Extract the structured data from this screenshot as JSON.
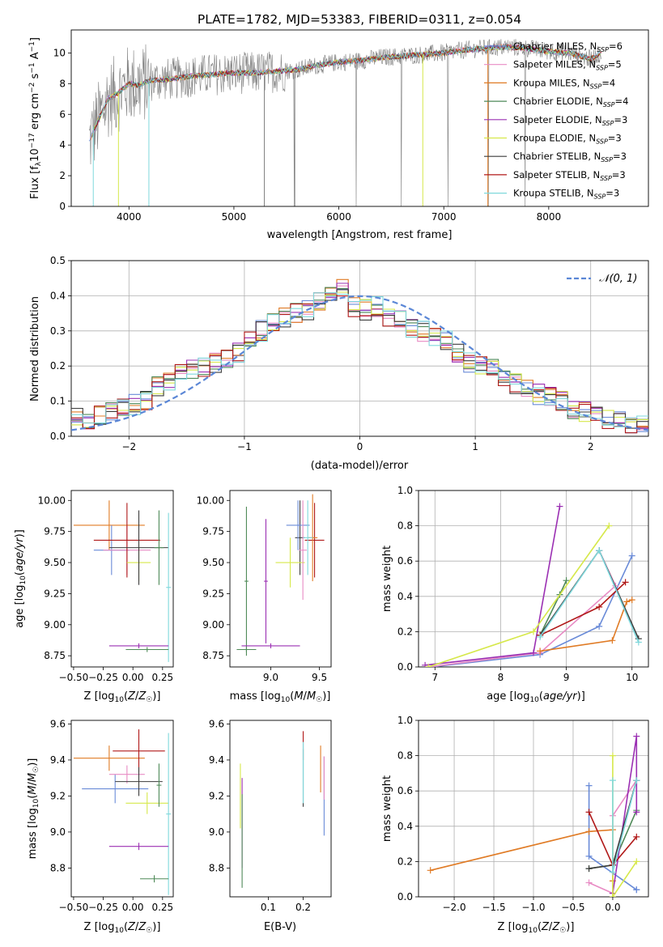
{
  "figure": {
    "title": "PLATE=1782, MJD=53383, FIBERID=0311, z=0.054"
  },
  "legend": {
    "models": [
      {
        "label": "Chabrier MILES, N",
        "sub": "SSP",
        "count": "=6",
        "color": "#6a8bd8"
      },
      {
        "label": "Salpeter MILES, N",
        "sub": "SSP",
        "count": "=5",
        "color": "#e88bc4"
      },
      {
        "label": "Kroupa MILES, N",
        "sub": "SSP",
        "count": "=4",
        "color": "#e07b25"
      },
      {
        "label": "Chabrier ELODIE, N",
        "sub": "SSP",
        "count": "=4",
        "color": "#4f8a58"
      },
      {
        "label": "Salpeter ELODIE, N",
        "sub": "SSP",
        "count": "=3",
        "color": "#9b30b3"
      },
      {
        "label": "Kroupa ELODIE, N",
        "sub": "SSP",
        "count": "=3",
        "color": "#d6e84a"
      },
      {
        "label": "Chabrier STELIB, N",
        "sub": "SSP",
        "count": "=3",
        "color": "#3c3c3c"
      },
      {
        "label": "Salpeter STELIB, N",
        "sub": "SSP",
        "count": "=3",
        "color": "#b01818"
      },
      {
        "label": "Kroupa STELIB, N",
        "sub": "SSP",
        "count": "=3",
        "color": "#7fd8dc"
      }
    ],
    "normal_label": "𝒩(0, 1)",
    "normal_color": "#5b87d6",
    "data_color": "#808080"
  },
  "chart_data": [
    {
      "type": "line",
      "title": "PLATE=1782, MJD=53383, FIBERID=0311, z=0.054",
      "xlabel": "wavelength [Angstrom, rest frame]",
      "ylabel": "Flux [f_λ 10^-17 erg cm^-2 s^-1 A^-1]",
      "xlim": [
        3450,
        8950
      ],
      "ylim": [
        0,
        11.5
      ],
      "xticks": [
        4000,
        5000,
        6000,
        7000,
        8000
      ],
      "yticks": [
        0,
        2,
        4,
        6,
        8,
        10
      ],
      "continuum": {
        "x": [
          3620,
          3700,
          3800,
          3900,
          4000,
          4100,
          4200,
          4400,
          4600,
          4800,
          5000,
          5200,
          5400,
          5600,
          5800,
          6000,
          6200,
          6400,
          6600,
          6800,
          7000,
          7200,
          7400,
          7600,
          7800,
          8000,
          8200,
          8400,
          8500
        ],
        "y": [
          4.2,
          5.5,
          7.0,
          7.4,
          8.0,
          7.9,
          8.2,
          8.3,
          8.5,
          8.6,
          8.7,
          8.7,
          8.8,
          8.9,
          9.2,
          9.4,
          9.5,
          9.7,
          9.8,
          9.9,
          10.0,
          10.2,
          10.3,
          10.4,
          10.3,
          10.1,
          10.0,
          9.6,
          10.0
        ]
      }
    },
    {
      "type": "histogram",
      "xlabel": "(data-model)/error",
      "ylabel": "Normed distribution",
      "xlim": [
        -2.5,
        2.5
      ],
      "ylim": [
        0,
        0.5
      ],
      "xticks": [
        -2,
        -1,
        0,
        1,
        2
      ],
      "yticks": [
        0.0,
        0.1,
        0.2,
        0.3,
        0.4,
        0.5
      ],
      "bin_edges": [
        -2.5,
        -2.4,
        -2.3,
        -2.2,
        -2.1,
        -2.0,
        -1.9,
        -1.8,
        -1.7,
        -1.6,
        -1.5,
        -1.4,
        -1.3,
        -1.2,
        -1.1,
        -1.0,
        -0.9,
        -0.8,
        -0.7,
        -0.6,
        -0.5,
        -0.4,
        -0.3,
        -0.2,
        -0.1,
        0.0,
        0.1,
        0.2,
        0.3,
        0.4,
        0.5,
        0.6,
        0.7,
        0.8,
        0.9,
        1.0,
        1.1,
        1.2,
        1.3,
        1.4,
        1.5,
        1.6,
        1.7,
        1.8,
        1.9,
        2.0,
        2.1,
        2.2,
        2.3,
        2.4,
        2.5
      ],
      "base_density": [
        0.05,
        0.05,
        0.06,
        0.07,
        0.08,
        0.09,
        0.1,
        0.14,
        0.16,
        0.18,
        0.19,
        0.2,
        0.21,
        0.22,
        0.24,
        0.27,
        0.3,
        0.32,
        0.34,
        0.35,
        0.36,
        0.38,
        0.4,
        0.42,
        0.37,
        0.36,
        0.37,
        0.34,
        0.33,
        0.31,
        0.3,
        0.28,
        0.27,
        0.24,
        0.21,
        0.2,
        0.19,
        0.17,
        0.15,
        0.14,
        0.12,
        0.11,
        0.1,
        0.08,
        0.07,
        0.06,
        0.05,
        0.04,
        0.03,
        0.03
      ],
      "normal_curve": {
        "name": "𝒩(0, 1)",
        "mu": 0,
        "sigma": 1
      }
    },
    {
      "type": "scatter",
      "xlabel": "Z [log₁₀(Z/Z☉)]",
      "ylabel": "age [log₁₀(age/yr)]",
      "xlim": [
        -0.52,
        0.34
      ],
      "ylim": [
        8.66,
        10.08
      ],
      "xticks": [
        -0.5,
        -0.25,
        0.0,
        0.25
      ],
      "yticks": [
        8.75,
        9.0,
        9.25,
        9.5,
        9.75,
        10.0
      ],
      "points": [
        {
          "x": -0.2,
          "y": 9.8,
          "xerr": 0.3,
          "yerr": 0.2,
          "color": "#e07b25"
        },
        {
          "x": -0.18,
          "y": 9.6,
          "xerr": 0.15,
          "yerr": 0.2,
          "color": "#6a8bd8"
        },
        {
          "x": -0.05,
          "y": 9.6,
          "xerr": 0.2,
          "yerr": 0.2,
          "color": "#e88bc4"
        },
        {
          "x": -0.05,
          "y": 9.68,
          "xerr": 0.28,
          "yerr": 0.3,
          "color": "#b01818"
        },
        {
          "x": 0.05,
          "y": 9.5,
          "xerr": 0.1,
          "yerr": 0.15,
          "color": "#d6e84a"
        },
        {
          "x": 0.05,
          "y": 9.62,
          "xerr": 0.25,
          "yerr": 0.3,
          "color": "#3c3c3c"
        },
        {
          "x": 0.22,
          "y": 9.62,
          "xerr": 0.04,
          "yerr": 0.3,
          "color": "#4f8a58"
        },
        {
          "x": 0.3,
          "y": 9.3,
          "xerr": 0.02,
          "yerr": 0.6,
          "color": "#7fd8dc"
        },
        {
          "x": 0.05,
          "y": 8.83,
          "xerr": 0.25,
          "yerr": 0.02,
          "color": "#9b30b3"
        },
        {
          "x": 0.12,
          "y": 8.8,
          "xerr": 0.18,
          "yerr": 0.02,
          "color": "#4f8a58"
        }
      ]
    },
    {
      "type": "scatter",
      "xlabel": "mass [log₁₀(M/M☉)]",
      "ylabel": "",
      "xlim": [
        8.58,
        9.62
      ],
      "ylim": [
        8.66,
        10.08
      ],
      "xticks": [
        9.0,
        9.5
      ],
      "yticks": [
        8.75,
        9.0,
        9.25,
        9.5,
        9.75,
        10.0
      ],
      "points": [
        {
          "x": 8.75,
          "y": 9.35,
          "xerr": 0.02,
          "yerr": 0.6,
          "color": "#4f8a58"
        },
        {
          "x": 8.95,
          "y": 9.35,
          "xerr": 0.02,
          "yerr": 0.5,
          "color": "#9b30b3"
        },
        {
          "x": 9.3,
          "y": 9.7,
          "xerr": 0.05,
          "yerr": 0.3,
          "color": "#3c3c3c"
        },
        {
          "x": 9.2,
          "y": 9.5,
          "xerr": 0.15,
          "yerr": 0.2,
          "color": "#d6e84a"
        },
        {
          "x": 9.28,
          "y": 9.8,
          "xerr": 0.12,
          "yerr": 0.2,
          "color": "#6a8bd8"
        },
        {
          "x": 9.45,
          "y": 9.68,
          "xerr": 0.1,
          "yerr": 0.3,
          "color": "#b01818"
        },
        {
          "x": 9.43,
          "y": 9.7,
          "xerr": 0.05,
          "yerr": 0.35,
          "color": "#e07b25"
        },
        {
          "x": 9.38,
          "y": 9.7,
          "xerr": 0.05,
          "yerr": 0.3,
          "color": "#7fd8dc"
        },
        {
          "x": 9.33,
          "y": 9.6,
          "xerr": 0.04,
          "yerr": 0.4,
          "color": "#e88bc4"
        },
        {
          "x": 9.0,
          "y": 8.83,
          "xerr": 0.3,
          "yerr": 0.02,
          "color": "#9b30b3"
        },
        {
          "x": 8.75,
          "y": 8.8,
          "xerr": 0.1,
          "yerr": 0.02,
          "color": "#4f8a58"
        }
      ]
    },
    {
      "type": "line",
      "xlabel": "age [log₁₀(age/yr)]",
      "ylabel": "mass weight",
      "xlim": [
        6.75,
        10.25
      ],
      "ylim": [
        0,
        1.0
      ],
      "xticks": [
        7,
        8,
        9,
        10
      ],
      "yticks": [
        0.0,
        0.2,
        0.4,
        0.6,
        0.8,
        1.0
      ],
      "series": [
        {
          "model": 0,
          "color": "#6a8bd8",
          "x": [
            6.95,
            8.6,
            9.5,
            10.0
          ],
          "y": [
            0.0,
            0.07,
            0.23,
            0.63
          ]
        },
        {
          "model": 1,
          "color": "#e88bc4",
          "x": [
            6.9,
            8.6,
            9.75,
            9.5
          ],
          "y": [
            0.0,
            0.08,
            0.46,
            0.66
          ]
        },
        {
          "model": 2,
          "color": "#e07b25",
          "x": [
            8.6,
            9.7,
            9.92,
            10.0
          ],
          "y": [
            0.09,
            0.15,
            0.37,
            0.38
          ]
        },
        {
          "model": 3,
          "color": "#4f8a58",
          "x": [
            8.6,
            8.9,
            9.0
          ],
          "y": [
            0.18,
            0.41,
            0.49
          ]
        },
        {
          "model": 4,
          "color": "#9b30b3",
          "x": [
            6.85,
            8.5,
            8.9
          ],
          "y": [
            0.01,
            0.08,
            0.91
          ]
        },
        {
          "model": 5,
          "color": "#d6e84a",
          "x": [
            6.9,
            8.5,
            9.65
          ],
          "y": [
            0.0,
            0.2,
            0.8
          ]
        },
        {
          "model": 6,
          "color": "#3c3c3c",
          "x": [
            8.6,
            9.5,
            10.1
          ],
          "y": [
            0.18,
            0.66,
            0.16
          ]
        },
        {
          "model": 7,
          "color": "#b01818",
          "x": [
            8.6,
            9.5,
            9.9
          ],
          "y": [
            0.18,
            0.34,
            0.48
          ]
        },
        {
          "model": 8,
          "color": "#7fd8dc",
          "x": [
            8.6,
            9.5,
            10.1
          ],
          "y": [
            0.17,
            0.66,
            0.14
          ]
        }
      ]
    },
    {
      "type": "scatter",
      "xlabel": "Z [log₁₀(Z/Z☉)]",
      "ylabel": "mass [log₁₀(M/M☉)]",
      "xlim": [
        -0.52,
        0.34
      ],
      "ylim": [
        8.64,
        9.62
      ],
      "xticks": [
        -0.5,
        -0.25,
        0.0,
        0.25
      ],
      "yticks": [
        8.8,
        9.0,
        9.2,
        9.4,
        9.6
      ],
      "points": [
        {
          "x": -0.2,
          "y": 9.41,
          "xerr": 0.3,
          "yerr": 0.07,
          "color": "#e07b25"
        },
        {
          "x": -0.15,
          "y": 9.24,
          "xerr": 0.28,
          "yerr": 0.08,
          "color": "#6a8bd8"
        },
        {
          "x": -0.05,
          "y": 9.32,
          "xerr": 0.15,
          "yerr": 0.05,
          "color": "#e88bc4"
        },
        {
          "x": 0.05,
          "y": 9.45,
          "xerr": 0.22,
          "yerr": 0.12,
          "color": "#b01818"
        },
        {
          "x": 0.05,
          "y": 9.28,
          "xerr": 0.2,
          "yerr": 0.08,
          "color": "#3c3c3c"
        },
        {
          "x": 0.12,
          "y": 9.16,
          "xerr": 0.18,
          "yerr": 0.06,
          "color": "#d6e84a"
        },
        {
          "x": 0.22,
          "y": 9.26,
          "xerr": 0.02,
          "yerr": 0.12,
          "color": "#4f8a58"
        },
        {
          "x": 0.3,
          "y": 9.1,
          "xerr": 0.02,
          "yerr": 0.45,
          "color": "#7fd8dc"
        },
        {
          "x": 0.05,
          "y": 8.92,
          "xerr": 0.25,
          "yerr": 0.02,
          "color": "#9b30b3"
        },
        {
          "x": 0.18,
          "y": 8.74,
          "xerr": 0.12,
          "yerr": 0.02,
          "color": "#4f8a58"
        }
      ]
    },
    {
      "type": "scatter",
      "xlabel": "E(B-V)",
      "ylabel": "",
      "xlim": [
        -0.01,
        0.28
      ],
      "ylim": [
        8.64,
        9.62
      ],
      "xticks": [
        0.1,
        0.2
      ],
      "yticks": [
        8.8,
        9.0,
        9.2,
        9.4,
        9.6
      ],
      "points": [
        {
          "x": 0.02,
          "y": 9.2,
          "xerr": 0.0,
          "yerr": 0.18,
          "color": "#d6e84a"
        },
        {
          "x": 0.025,
          "y": 9.05,
          "xerr": 0.0,
          "yerr": 0.25,
          "color": "#9b30b3"
        },
        {
          "x": 0.025,
          "y": 8.95,
          "xerr": 0.0,
          "yerr": 0.26,
          "color": "#4f8a58"
        },
        {
          "x": 0.2,
          "y": 9.48,
          "xerr": 0.0,
          "yerr": 0.08,
          "color": "#b01818"
        },
        {
          "x": 0.2,
          "y": 9.3,
          "xerr": 0.0,
          "yerr": 0.16,
          "color": "#3c3c3c"
        },
        {
          "x": 0.2,
          "y": 9.33,
          "xerr": 0.0,
          "yerr": 0.17,
          "color": "#7fd8dc"
        },
        {
          "x": 0.25,
          "y": 9.35,
          "xerr": 0.0,
          "yerr": 0.13,
          "color": "#e07b25"
        },
        {
          "x": 0.26,
          "y": 9.2,
          "xerr": 0.0,
          "yerr": 0.22,
          "color": "#6a8bd8"
        },
        {
          "x": 0.26,
          "y": 9.3,
          "xerr": 0.0,
          "yerr": 0.12,
          "color": "#e88bc4"
        }
      ]
    },
    {
      "type": "line",
      "xlabel": "Z [log₁₀(Z/Z☉)]",
      "ylabel": "mass weight",
      "xlim": [
        -2.45,
        0.45
      ],
      "ylim": [
        0,
        1.0
      ],
      "xticks": [
        -2.0,
        -1.5,
        -1.0,
        -0.5,
        0.0
      ],
      "yticks": [
        0.0,
        0.2,
        0.4,
        0.6,
        0.8,
        1.0
      ],
      "series": [
        {
          "model": 0,
          "color": "#6a8bd8",
          "x": [
            -0.3,
            -0.3,
            0.3,
            0.3
          ],
          "y": [
            0.63,
            0.23,
            0.04,
            0.04
          ]
        },
        {
          "model": 1,
          "color": "#e88bc4",
          "x": [
            -0.3,
            0.0,
            0.0,
            0.3
          ],
          "y": [
            0.08,
            0.02,
            0.46,
            0.66
          ]
        },
        {
          "model": 2,
          "color": "#e07b25",
          "x": [
            -2.3,
            -0.3,
            0.0,
            0.0
          ],
          "y": [
            0.15,
            0.37,
            0.38,
            0.09
          ]
        },
        {
          "model": 3,
          "color": "#4f8a58",
          "x": [
            -0.3,
            0.0,
            0.3
          ],
          "y": [
            0.16,
            0.18,
            0.49
          ]
        },
        {
          "model": 4,
          "color": "#9b30b3",
          "x": [
            0.0,
            0.3,
            0.3
          ],
          "y": [
            0.02,
            0.91,
            0.48
          ]
        },
        {
          "model": 5,
          "color": "#d6e84a",
          "x": [
            0.0,
            0.0,
            0.3
          ],
          "y": [
            0.8,
            0.0,
            0.2
          ]
        },
        {
          "model": 6,
          "color": "#3c3c3c",
          "x": [
            -0.3,
            0.0,
            0.3
          ],
          "y": [
            0.16,
            0.18,
            0.66
          ]
        },
        {
          "model": 7,
          "color": "#b01818",
          "x": [
            -0.3,
            0.0,
            0.3
          ],
          "y": [
            0.48,
            0.18,
            0.34
          ]
        },
        {
          "model": 8,
          "color": "#7fd8dc",
          "x": [
            0.0,
            0.0,
            0.3
          ],
          "y": [
            0.66,
            0.14,
            0.66
          ]
        }
      ]
    }
  ]
}
